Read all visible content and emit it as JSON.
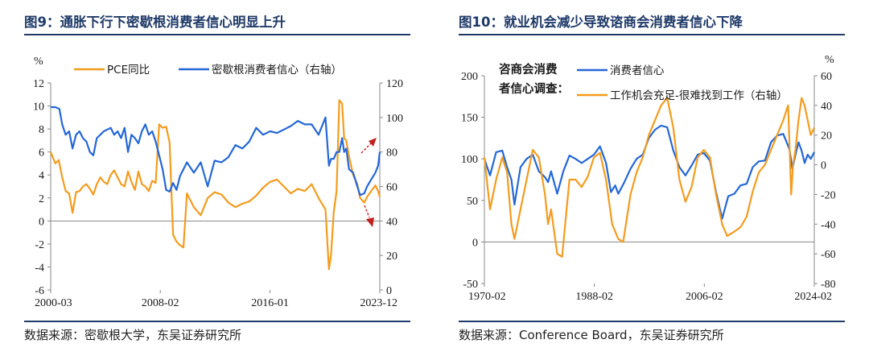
{
  "panels": [
    {
      "title": "图9：通胀下行下密歇根消费者信心明显上升",
      "source": "数据来源：密歇根大学，东吴证券研究所",
      "chart_data": {
        "type": "line",
        "unit_left": "%",
        "ylim_left": [
          -6,
          12
        ],
        "yticks_left": [
          -6,
          -4,
          -2,
          0,
          2,
          4,
          6,
          8,
          10,
          12
        ],
        "ylim_right": [
          0,
          120
        ],
        "yticks_right": [
          0,
          20,
          40,
          60,
          80,
          100,
          120
        ],
        "xlim": [
          2000.17,
          2023.92
        ],
        "x_tick_labels": [
          "2000-03",
          "2008-02",
          "2016-01",
          "2023-12"
        ],
        "x_tick_positions": [
          2000.17,
          2008.08,
          2016.0,
          2023.92
        ],
        "legend": [
          "PCE同比",
          "密歇根消费者信心（右轴）"
        ],
        "series": [
          {
            "name": "PCE同比",
            "axis": "left",
            "color": "#f39c1e",
            "x": [
              2000.17,
              2000.5,
              2000.75,
              2001.0,
              2001.25,
              2001.5,
              2001.75,
              2002.0,
              2002.25,
              2002.5,
              2002.75,
              2003.0,
              2003.25,
              2003.5,
              2003.75,
              2004.0,
              2004.25,
              2004.5,
              2004.75,
              2005.0,
              2005.25,
              2005.5,
              2005.75,
              2006.0,
              2006.25,
              2006.5,
              2006.75,
              2007.0,
              2007.25,
              2007.5,
              2007.75,
              2008.0,
              2008.25,
              2008.5,
              2008.75,
              2009.0,
              2009.25,
              2009.5,
              2009.75,
              2010.0,
              2010.5,
              2011.0,
              2011.5,
              2012.0,
              2012.5,
              2013.0,
              2013.5,
              2014.0,
              2014.5,
              2015.0,
              2015.5,
              2016.0,
              2016.5,
              2017.0,
              2017.5,
              2018.0,
              2018.5,
              2019.0,
              2019.5,
              2020.0,
              2020.25,
              2020.4,
              2020.6,
              2020.8,
              2021.0,
              2021.2,
              2021.35,
              2021.5,
              2021.7,
              2022.0,
              2022.3,
              2022.5,
              2022.8,
              2023.0,
              2023.3,
              2023.6,
              2023.8,
              2023.92
            ],
            "values": [
              6.0,
              5.0,
              5.3,
              3.8,
              2.6,
              2.4,
              0.7,
              2.5,
              2.6,
              3.0,
              3.2,
              2.8,
              2.3,
              3.2,
              3.8,
              3.4,
              3.2,
              4.0,
              4.4,
              3.8,
              3.2,
              3.0,
              4.3,
              3.4,
              2.7,
              4.3,
              3.2,
              3.0,
              2.6,
              3.5,
              3.3,
              8.4,
              8.1,
              8.2,
              6.8,
              -1.2,
              -1.8,
              -2.1,
              -2.3,
              2.4,
              1.2,
              0.5,
              2.0,
              2.5,
              2.3,
              1.6,
              1.2,
              1.5,
              1.7,
              2.2,
              2.9,
              3.4,
              3.6,
              3.0,
              2.4,
              2.8,
              2.6,
              3.2,
              2.0,
              1.0,
              -4.2,
              -3.0,
              0.8,
              2.6,
              10.5,
              10.2,
              7.2,
              7.0,
              5.6,
              4.0,
              3.2,
              2.0,
              1.6,
              2.1,
              2.6,
              3.1,
              2.6,
              2.1
            ]
          },
          {
            "name": "密歇根消费者信心（右轴）",
            "axis": "right",
            "color": "#2467d6",
            "x": [
              2000.17,
              2000.5,
              2000.8,
              2001.0,
              2001.25,
              2001.5,
              2001.75,
              2002.0,
              2002.25,
              2002.5,
              2002.75,
              2003.0,
              2003.25,
              2003.5,
              2003.75,
              2004.0,
              2004.25,
              2004.5,
              2004.75,
              2005.0,
              2005.25,
              2005.5,
              2005.75,
              2006.0,
              2006.25,
              2006.5,
              2006.75,
              2007.0,
              2007.25,
              2007.5,
              2007.75,
              2008.0,
              2008.25,
              2008.5,
              2008.75,
              2009.0,
              2009.25,
              2009.5,
              2009.75,
              2010.0,
              2010.5,
              2011.0,
              2011.5,
              2012.0,
              2012.5,
              2013.0,
              2013.5,
              2014.0,
              2014.5,
              2015.0,
              2015.5,
              2016.0,
              2016.5,
              2017.0,
              2017.5,
              2018.0,
              2018.5,
              2019.0,
              2019.5,
              2020.0,
              2020.25,
              2020.4,
              2020.6,
              2020.8,
              2021.0,
              2021.2,
              2021.35,
              2021.5,
              2021.7,
              2022.0,
              2022.3,
              2022.5,
              2022.8,
              2023.0,
              2023.3,
              2023.6,
              2023.8,
              2023.92
            ],
            "values": [
              106,
              106,
              105,
              96,
              90,
              92,
              82,
              90,
              92,
              88,
              86,
              80,
              78,
              88,
              90,
              92,
              93,
              94,
              90,
              92,
              88,
              94,
              80,
              90,
              88,
              85,
              92,
              96,
              90,
              92,
              86,
              78,
              70,
              58,
              57,
              62,
              58,
              66,
              70,
              74,
              68,
              74,
              60,
              75,
              74,
              77,
              84,
              82,
              86,
              94,
              90,
              92,
              91,
              93,
              95,
              98,
              96,
              96,
              90,
              100,
              72,
              76,
              76,
              80,
              80,
              88,
              80,
              82,
              70,
              68,
              60,
              55,
              56,
              60,
              64,
              68,
              72,
              80
            ]
          }
        ],
        "annotations": [
          {
            "type": "arrow",
            "direction": "up",
            "color": "#c0201e",
            "style": "dashed"
          },
          {
            "type": "arrow",
            "direction": "down",
            "color": "#c0201e",
            "style": "dashed"
          }
        ]
      }
    },
    {
      "title": "图10：就业机会减少导致谘商会消费者信心下降",
      "source": "数据来源：Conference Board，东吴证券研究所",
      "chart_data": {
        "type": "line",
        "unit_right": "%",
        "ylim_left": [
          -50,
          200
        ],
        "yticks_left": [
          -50,
          0,
          50,
          100,
          150,
          200
        ],
        "ylim_right": [
          -80,
          60
        ],
        "yticks_right": [
          -80,
          -60,
          -40,
          -20,
          0,
          20,
          40,
          60
        ],
        "xlim": [
          1970.08,
          2024.08
        ],
        "x_tick_labels": [
          "1970-02",
          "1988-02",
          "2006-02",
          "2024-02"
        ],
        "x_tick_positions": [
          1970.08,
          1988.08,
          2006.08,
          2024.08
        ],
        "inline_label": [
          "咨商会消费",
          "者信心调查："
        ],
        "legend": [
          "消费者信心",
          "工作机会充足-很难找到工作（右轴）"
        ],
        "series": [
          {
            "name": "消费者信心",
            "axis": "left",
            "color": "#2467d6",
            "x": [
              1970.08,
              1971.0,
              1972.0,
              1973.0,
              1973.8,
              1974.5,
              1975.0,
              1976.0,
              1977.0,
              1978.0,
              1979.0,
              1980.0,
              1980.5,
              1981.0,
              1982.0,
              1983.0,
              1984.0,
              1985.0,
              1986.0,
              1987.0,
              1988.0,
              1989.0,
              1990.0,
              1990.8,
              1991.5,
              1992.0,
              1993.0,
              1994.0,
              1995.0,
              1996.0,
              1997.0,
              1998.0,
              1999.0,
              2000.0,
              2001.0,
              2002.0,
              2003.0,
              2004.0,
              2005.0,
              2006.0,
              2007.0,
              2008.0,
              2009.0,
              2010.0,
              2011.0,
              2012.0,
              2013.0,
              2014.0,
              2015.0,
              2016.0,
              2017.0,
              2018.0,
              2019.0,
              2020.0,
              2020.5,
              2021.0,
              2021.5,
              2022.0,
              2022.5,
              2023.0,
              2023.5,
              2024.08
            ],
            "values": [
              100,
              80,
              108,
              110,
              90,
              75,
              45,
              90,
              100,
              105,
              85,
              78,
              72,
              85,
              58,
              85,
              104,
              100,
              95,
              100,
              105,
              115,
              95,
              60,
              68,
              58,
              72,
              88,
              100,
              105,
              125,
              135,
              140,
              138,
              110,
              90,
              80,
              92,
              105,
              107,
              98,
              60,
              28,
              55,
              58,
              68,
              70,
              90,
              97,
              98,
              120,
              128,
              130,
              112,
              88,
              105,
              120,
              110,
              95,
              105,
              100,
              108
            ]
          },
          {
            "name": "工作机会充足-很难找到工作（右轴）",
            "axis": "right",
            "color": "#f39c1e",
            "x": [
              1970.08,
              1971.0,
              1972.0,
              1973.0,
              1973.8,
              1974.5,
              1975.0,
              1976.0,
              1977.0,
              1978.0,
              1979.0,
              1980.0,
              1980.5,
              1981.0,
              1982.0,
              1982.8,
              1984.0,
              1985.0,
              1986.0,
              1987.0,
              1988.0,
              1989.0,
              1990.0,
              1991.0,
              1992.0,
              1992.8,
              1994.0,
              1995.0,
              1996.0,
              1997.0,
              1998.0,
              1999.0,
              2000.0,
              2001.0,
              2002.0,
              2003.0,
              2004.0,
              2005.0,
              2006.0,
              2007.0,
              2008.0,
              2009.0,
              2009.8,
              2011.0,
              2012.0,
              2013.0,
              2014.0,
              2015.0,
              2016.0,
              2017.0,
              2018.0,
              2019.0,
              2019.8,
              2020.3,
              2020.6,
              2021.0,
              2021.5,
              2022.0,
              2022.5,
              2023.0,
              2023.5,
              2024.08
            ],
            "values": [
              5,
              -30,
              -10,
              5,
              -5,
              -40,
              -50,
              -30,
              -10,
              10,
              5,
              -20,
              -40,
              -30,
              -60,
              -62,
              -10,
              -10,
              -15,
              -8,
              5,
              8,
              -10,
              -40,
              -50,
              -52,
              -20,
              -5,
              5,
              20,
              30,
              40,
              45,
              25,
              -10,
              -25,
              -15,
              5,
              10,
              5,
              -20,
              -40,
              -48,
              -45,
              -42,
              -35,
              -18,
              -5,
              0,
              10,
              20,
              30,
              40,
              -20,
              0,
              10,
              30,
              45,
              40,
              30,
              20,
              25
            ]
          }
        ]
      }
    }
  ]
}
